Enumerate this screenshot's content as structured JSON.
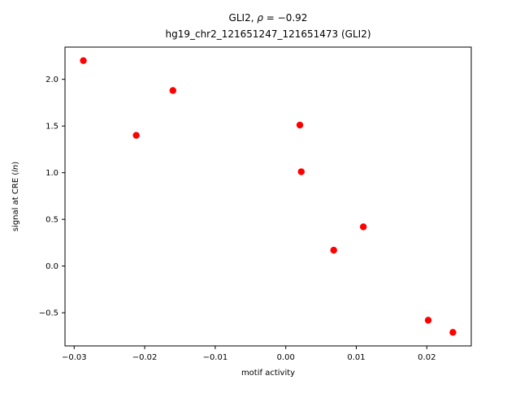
{
  "figure": {
    "background": "#ffffff"
  },
  "chart_data": {
    "type": "scatter",
    "title": "GLI2, ρ = −0.92",
    "title_parts": {
      "prefix": "GLI2, ",
      "rho": "ρ",
      "suffix": " = −0.92"
    },
    "subtitle": "hg19_chr2_121651247_121651473 (GLI2)",
    "xlabel": "motif activity",
    "ylabel": "signal at CRE (ln)",
    "ylabel_parts": {
      "prefix": "signal at CRE (",
      "italic": "ln",
      "suffix": ")"
    },
    "point_color": "#ff0000",
    "axis_color": "#000000",
    "grid": false,
    "legend": "none",
    "xlim": [
      -0.0313,
      0.0263
    ],
    "ylim": [
      -0.855,
      2.345
    ],
    "x_ticks": [
      -0.03,
      -0.02,
      -0.01,
      0.0,
      0.01,
      0.02
    ],
    "x_tick_labels": [
      "−0.03",
      "−0.02",
      "−0.01",
      "0.00",
      "0.01",
      "0.02"
    ],
    "y_ticks": [
      -0.5,
      0.0,
      0.5,
      1.0,
      1.5,
      2.0
    ],
    "y_tick_labels": [
      "−0.5",
      "0.0",
      "0.5",
      "1.0",
      "1.5",
      "2.0"
    ],
    "points": [
      {
        "x": -0.0287,
        "y": 2.2
      },
      {
        "x": -0.0212,
        "y": 1.4
      },
      {
        "x": -0.016,
        "y": 1.88
      },
      {
        "x": 0.002,
        "y": 1.51
      },
      {
        "x": 0.0022,
        "y": 1.01
      },
      {
        "x": 0.0068,
        "y": 0.17
      },
      {
        "x": 0.011,
        "y": 0.42
      },
      {
        "x": 0.0202,
        "y": -0.58
      },
      {
        "x": 0.0237,
        "y": -0.71
      }
    ]
  }
}
